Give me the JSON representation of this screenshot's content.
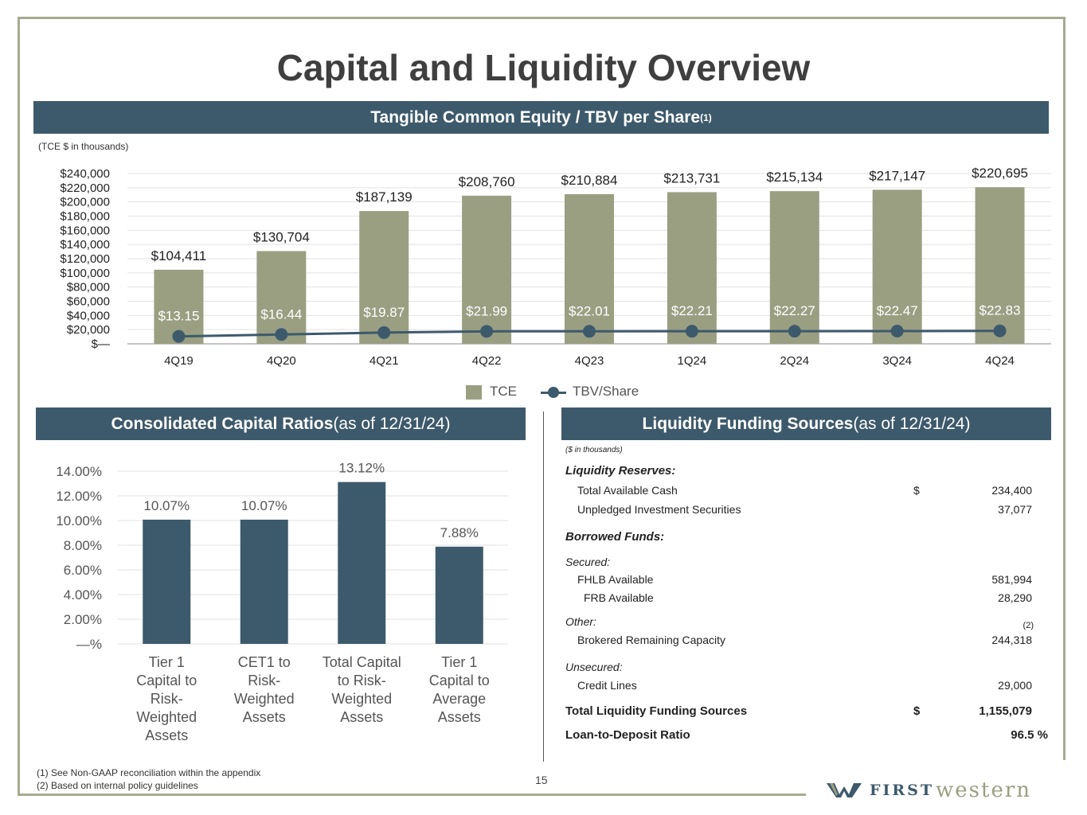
{
  "title": "Capital and Liquidity Overview",
  "top_banner": {
    "label": "Tangible Common Equity / TBV per Share",
    "sup": "(1)"
  },
  "tce_note": "(TCE $ in thousands)",
  "left_banner": {
    "bold": "Consolidated Capital Ratios",
    "light": " (as of 12/31/24)"
  },
  "right_banner": {
    "bold": "Liquidity Funding Sources",
    "light": " (as of 12/31/24)"
  },
  "legend": {
    "tce": "TCE",
    "tbv": "TBV/Share"
  },
  "colors": {
    "tce_bar": "#9a9f82",
    "tbv_line": "#3d5a6c",
    "ratio_bar": "#3d5a6c",
    "banner": "#3d5a6c"
  },
  "chart_data": [
    {
      "type": "bar",
      "categories": [
        "4Q19",
        "4Q20",
        "4Q21",
        "4Q22",
        "4Q23",
        "1Q24",
        "2Q24",
        "3Q24",
        "4Q24"
      ],
      "series": [
        {
          "name": "TCE",
          "type": "bar",
          "values": [
            104411,
            130704,
            187139,
            208760,
            210884,
            213731,
            215134,
            217147,
            220695
          ],
          "labels": [
            "$104,411",
            "$130,704",
            "$187,139",
            "$208,760",
            "$210,884",
            "$213,731",
            "$215,134",
            "$217,147",
            "$220,695"
          ]
        },
        {
          "name": "TBV/Share",
          "type": "line",
          "values": [
            13.15,
            16.44,
            19.87,
            21.99,
            22.01,
            22.21,
            22.27,
            22.47,
            22.83
          ],
          "labels": [
            "$13.15",
            "$16.44",
            "$19.87",
            "$21.99",
            "$22.01",
            "$22.21",
            "$22.27",
            "$22.47",
            "$22.83"
          ]
        }
      ],
      "yticks": [
        "$—",
        "$20,000",
        "$40,000",
        "$60,000",
        "$80,000",
        "$100,000",
        "$120,000",
        "$140,000",
        "$160,000",
        "$180,000",
        "$200,000",
        "$220,000",
        "$240,000"
      ],
      "ylim": [
        0,
        240000
      ],
      "grid": true,
      "legend": "bottom"
    },
    {
      "type": "bar",
      "categories": [
        "Tier 1 Capital to Risk-Weighted Assets",
        "CET1 to Risk-Weighted Assets",
        "Total Capital to Risk-Weighted Assets",
        "Tier 1 Capital to Average Assets"
      ],
      "category_lines": [
        [
          "Tier 1",
          "Capital to",
          "Risk-",
          "Weighted",
          "Assets"
        ],
        [
          "CET1 to",
          "Risk-",
          "Weighted",
          "Assets"
        ],
        [
          "Total Capital",
          "to Risk-",
          "Weighted",
          "Assets"
        ],
        [
          "Tier 1",
          "Capital to",
          "Average",
          "Assets"
        ]
      ],
      "values": [
        10.07,
        10.07,
        13.12,
        7.88
      ],
      "labels": [
        "10.07%",
        "10.07%",
        "13.12%",
        "7.88%"
      ],
      "yticks": [
        "—%",
        "2.00%",
        "4.00%",
        "6.00%",
        "8.00%",
        "10.00%",
        "12.00%",
        "14.00%"
      ],
      "ylim": [
        0,
        14
      ],
      "grid": true
    }
  ],
  "liquidity": {
    "units": "($ in thousands)",
    "reserves_header": "Liquidity Reserves:",
    "cash_label": "Total Available Cash",
    "cash_currency": "$",
    "cash_value": "234,400",
    "securities_label": "Unpledged Investment Securities",
    "securities_value": "37,077",
    "borrowed_header": "Borrowed Funds:",
    "secured_label": "Secured:",
    "fhlb_label": "FHLB Available",
    "fhlb_value": "581,994",
    "frb_label": "FRB Available",
    "frb_value": "28,290",
    "other_label": "Other:",
    "brokered_note": "(2)",
    "brokered_label": "Brokered Remaining Capacity",
    "brokered_value": "244,318",
    "unsecured_label": "Unsecured:",
    "credit_label": "Credit Lines",
    "credit_value": "29,000",
    "total_label": "Total Liquidity Funding Sources",
    "total_currency": "$",
    "total_value": "1,155,079",
    "ltd_label": "Loan-to-Deposit Ratio",
    "ltd_value": "96.5 %"
  },
  "footnotes": [
    "(1)  See Non-GAAP reconciliation within the appendix",
    "(2)  Based on internal policy guidelines"
  ],
  "page_number": "15",
  "logo": {
    "first": "FIRST",
    "western": "western"
  }
}
